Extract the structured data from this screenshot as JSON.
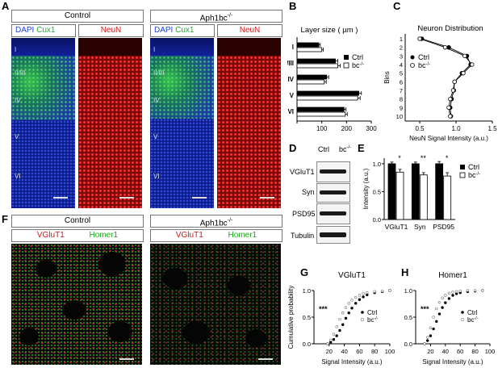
{
  "panels": {
    "A": "A",
    "B": "B",
    "C": "C",
    "D": "D",
    "E": "E",
    "F": "F",
    "G": "G",
    "H": "H"
  },
  "panelA": {
    "control_title": "Control",
    "mutant_title": "Aph1bc",
    "mutant_sup": "-/-",
    "stains": {
      "dapi": "DAPI",
      "cux1": "Cux1",
      "neun": "NeuN"
    },
    "layers": [
      "I",
      "II/III",
      "IV",
      "V",
      "VI"
    ]
  },
  "panelD": {
    "col_ctrl": "Ctrl",
    "col_bc": "bc",
    "col_bc_sup": "-/-",
    "rows": [
      "VGluT1",
      "Syn",
      "PSD95",
      "Tubulin"
    ]
  },
  "panelF": {
    "control_title": "Control",
    "mutant_title": "Aph1bc",
    "mutant_sup": "-/-",
    "stain_red": "VGluT1",
    "stain_green": "Homer1"
  },
  "colors": {
    "dapi": "#1f3fd6",
    "cux1": "#2fd14a",
    "neun": "#e01818",
    "vglut": "#e02020",
    "homer": "#2ccc2c"
  },
  "chart_data": [
    {
      "id": "B",
      "type": "bar",
      "orientation": "horizontal",
      "title": "Layer size ( µm )",
      "categories": [
        "I",
        "II/III",
        "IV",
        "V",
        "VI"
      ],
      "series": [
        {
          "name": "Ctrl",
          "values": [
            88,
            155,
            120,
            250,
            190
          ]
        },
        {
          "name": "bc-/-",
          "values": [
            100,
            165,
            110,
            245,
            195
          ]
        }
      ],
      "errors": [
        [
          6,
          10,
          8,
          10,
          8
        ],
        [
          6,
          10,
          8,
          10,
          8
        ]
      ],
      "legend": {
        "ctrl": "Ctrl",
        "bc": "bc",
        "sup": "-/-"
      },
      "xticks": [
        "0",
        "100",
        "200",
        "300"
      ],
      "xlim": [
        0,
        300
      ]
    },
    {
      "id": "C",
      "type": "line",
      "title": "Neuron Distribution",
      "xlabel": "NeuN Signal Intensity (a.u.)",
      "ylabel": "Bins",
      "bins": [
        1,
        2,
        3,
        4,
        5,
        6,
        7,
        8,
        9,
        10
      ],
      "series": [
        {
          "name": "Ctrl",
          "values": [
            0.53,
            0.9,
            1.15,
            1.2,
            1.08,
            0.98,
            0.97,
            0.94,
            0.92,
            0.93
          ]
        },
        {
          "name": "bc-/-",
          "values": [
            0.5,
            0.85,
            1.12,
            1.22,
            1.1,
            0.98,
            0.96,
            0.92,
            0.9,
            0.92
          ]
        }
      ],
      "legend": {
        "ctrl": "Ctrl",
        "bc": "bc",
        "sup": "-/-"
      },
      "xticks": [
        "0.5",
        "1.0",
        "1.5"
      ],
      "xlim": [
        0.3,
        1.5
      ]
    },
    {
      "id": "E",
      "type": "bar",
      "categories": [
        "VGluT1",
        "Syn",
        "PSD95"
      ],
      "series": [
        {
          "name": "Ctrl",
          "values": [
            1.0,
            1.0,
            1.0
          ]
        },
        {
          "name": "bc-/-",
          "values": [
            0.85,
            0.8,
            0.78
          ]
        }
      ],
      "errors": [
        [
          0.03,
          0.03,
          0.04
        ],
        [
          0.05,
          0.04,
          0.06
        ]
      ],
      "significance": [
        "*",
        "**",
        "*"
      ],
      "ylabel": "Intensity (a.u.)",
      "yticks": [
        "0.0",
        "0.5",
        "1.0"
      ],
      "ylim": [
        0,
        1.1
      ],
      "legend": {
        "ctrl": "Ctrl",
        "bc": "bc",
        "sup": "-/-"
      }
    },
    {
      "id": "G",
      "type": "line",
      "title": "VGluT1",
      "xlabel": "Signal Intensity (a.u.)",
      "ylabel": "Cumulative probability",
      "xticks": [
        "20",
        "40",
        "60",
        "80",
        "100"
      ],
      "yticks": [
        "0.0",
        "0.5",
        "1.0"
      ],
      "xlim": [
        0,
        100
      ],
      "ylim": [
        0,
        1.0
      ],
      "significance": "***",
      "legend": {
        "ctrl": "Ctrl",
        "bc": "bc",
        "sup": "-/-"
      },
      "ctrl": {
        "x": [
          18,
          22,
          26,
          30,
          34,
          38,
          42,
          46,
          50,
          55,
          60,
          65,
          70,
          80,
          90,
          100
        ],
        "y": [
          0,
          0.03,
          0.08,
          0.15,
          0.25,
          0.36,
          0.48,
          0.58,
          0.67,
          0.76,
          0.83,
          0.88,
          0.92,
          0.96,
          0.98,
          1.0
        ]
      },
      "bc": {
        "x": [
          18,
          22,
          26,
          30,
          34,
          38,
          42,
          46,
          50,
          55,
          60,
          65,
          70,
          80,
          90,
          100
        ],
        "y": [
          0,
          0.07,
          0.18,
          0.32,
          0.46,
          0.58,
          0.68,
          0.76,
          0.82,
          0.87,
          0.91,
          0.94,
          0.96,
          0.98,
          0.99,
          1.0
        ]
      }
    },
    {
      "id": "H",
      "type": "line",
      "title": "Homer1",
      "xlabel": "Signal Intensity (a.u.)",
      "xticks": [
        "20",
        "40",
        "60",
        "80",
        "100"
      ],
      "yticks": [
        "0.0",
        "0.5",
        "1.0"
      ],
      "xlim": [
        0,
        100
      ],
      "ylim": [
        0,
        1.0
      ],
      "significance": "***",
      "legend": {
        "ctrl": "Ctrl",
        "bc": "bc",
        "sup": "-/-"
      },
      "ctrl": {
        "x": [
          12,
          16,
          20,
          24,
          28,
          32,
          36,
          40,
          45,
          50,
          55,
          60,
          70,
          80,
          90
        ],
        "y": [
          0,
          0.06,
          0.15,
          0.28,
          0.42,
          0.56,
          0.68,
          0.77,
          0.85,
          0.91,
          0.94,
          0.96,
          0.98,
          0.99,
          1.0
        ]
      },
      "bc": {
        "x": [
          12,
          16,
          20,
          24,
          28,
          32,
          36,
          40,
          45,
          50,
          55,
          60,
          70,
          80,
          90
        ],
        "y": [
          0,
          0.12,
          0.3,
          0.5,
          0.66,
          0.78,
          0.86,
          0.91,
          0.95,
          0.97,
          0.98,
          0.99,
          1.0,
          1.0,
          1.0
        ]
      }
    }
  ]
}
